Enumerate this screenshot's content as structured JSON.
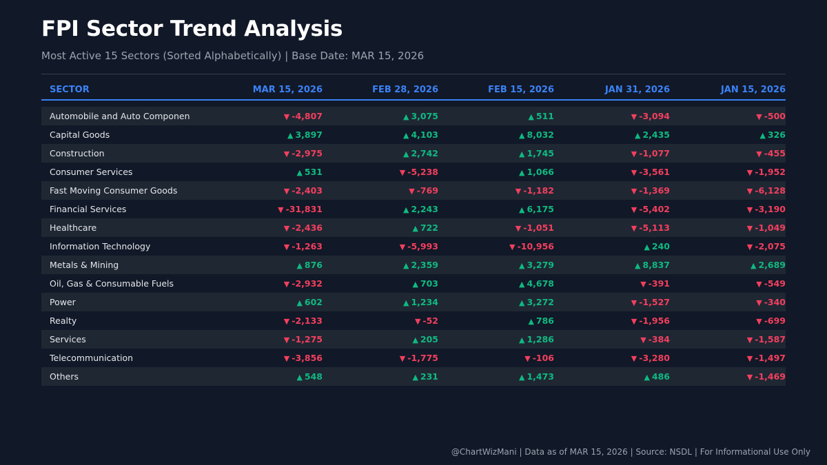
{
  "title": "FPI Sector Trend Analysis",
  "subtitle": "Most Active 15 Sectors (Sorted Alphabetically) | Base Date: MAR 15, 2026",
  "footer": "@ChartWizMani | Data as of MAR 15, 2026 | Source: NSDL | For Informational Use Only",
  "colors": {
    "background": "#111827",
    "header_accent": "#3b82f6",
    "positive": "#10b981",
    "negative": "#f43f5e"
  },
  "chart_data": {
    "type": "table",
    "title": "FPI Sector Trend Analysis",
    "subtitle": "Most Active 15 Sectors (Sorted Alphabetically) | Base Date: MAR 15, 2026",
    "columns": [
      "SECTOR",
      "MAR 15, 2026",
      "FEB 28, 2026",
      "FEB 15, 2026",
      "JAN 31, 2026",
      "JAN 15, 2026"
    ],
    "rows": [
      {
        "sector": "Automobile and Auto Componen",
        "values": [
          -4807,
          3075,
          511,
          -3094,
          -500
        ]
      },
      {
        "sector": "Capital Goods",
        "values": [
          3897,
          4103,
          8032,
          2435,
          326
        ]
      },
      {
        "sector": "Construction",
        "values": [
          -2975,
          2742,
          1745,
          -1077,
          -455
        ]
      },
      {
        "sector": "Consumer Services",
        "values": [
          531,
          -5238,
          1066,
          -3561,
          -1952
        ]
      },
      {
        "sector": "Fast Moving Consumer Goods",
        "values": [
          -2403,
          -769,
          -1182,
          -1369,
          -6128
        ]
      },
      {
        "sector": "Financial Services",
        "values": [
          -31831,
          2243,
          6175,
          -5402,
          -3190
        ]
      },
      {
        "sector": "Healthcare",
        "values": [
          -2436,
          722,
          -1051,
          -5113,
          -1049
        ]
      },
      {
        "sector": "Information Technology",
        "values": [
          -1263,
          -5993,
          -10956,
          240,
          -2075
        ]
      },
      {
        "sector": "Metals & Mining",
        "values": [
          876,
          2359,
          3279,
          8837,
          2689
        ]
      },
      {
        "sector": "Oil, Gas & Consumable Fuels",
        "values": [
          -2932,
          703,
          4678,
          -391,
          -549
        ]
      },
      {
        "sector": "Power",
        "values": [
          602,
          1234,
          3272,
          -1527,
          -340
        ]
      },
      {
        "sector": "Realty",
        "values": [
          -2133,
          -52,
          786,
          -1956,
          -699
        ]
      },
      {
        "sector": "Services",
        "values": [
          -1275,
          205,
          1286,
          -384,
          -1587
        ]
      },
      {
        "sector": "Telecommunication",
        "values": [
          -3856,
          -1775,
          -106,
          -3280,
          -1497
        ]
      },
      {
        "sector": "Others",
        "values": [
          548,
          231,
          1473,
          486,
          -1469
        ]
      }
    ]
  }
}
